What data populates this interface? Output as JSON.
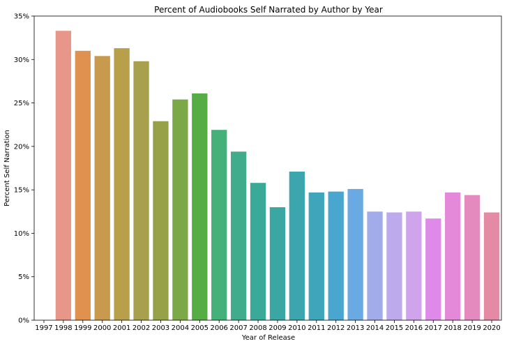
{
  "chart_data": {
    "type": "bar",
    "title": "Percent of Audiobooks Self Narrated by Author by Year",
    "xlabel": "Year of Release",
    "ylabel": "Percent Self Narration",
    "categories": [
      "1997",
      "1998",
      "1999",
      "2000",
      "2001",
      "2002",
      "2003",
      "2004",
      "2005",
      "2006",
      "2007",
      "2008",
      "2009",
      "2010",
      "2011",
      "2012",
      "2013",
      "2014",
      "2015",
      "2016",
      "2017",
      "2018",
      "2019",
      "2020"
    ],
    "values": [
      0,
      33.3,
      31.0,
      30.4,
      31.3,
      29.8,
      22.9,
      25.4,
      26.1,
      21.9,
      19.4,
      15.8,
      13.0,
      17.1,
      14.7,
      14.8,
      15.1,
      12.5,
      12.4,
      12.5,
      11.7,
      14.7,
      14.4,
      12.4
    ],
    "ylim": [
      0,
      35
    ],
    "yticks": [
      0,
      5,
      10,
      15,
      20,
      25,
      30,
      35
    ],
    "ytick_suffix": "%",
    "grid": false,
    "colors": [
      "#e9968a",
      "#e9968a",
      "#e0914f",
      "#c89a4e",
      "#b8a04a",
      "#a8a04c",
      "#97a248",
      "#7ca948",
      "#56ad44",
      "#45b07a",
      "#40ac8c",
      "#3ba998",
      "#3aa7a3",
      "#3ca6ae",
      "#3ea5bb",
      "#48a6cf",
      "#6aaae3",
      "#a2acea",
      "#bcaaec",
      "#cfa4ec",
      "#df8ae8",
      "#e489d9",
      "#e58abe",
      "#e58aa5"
    ]
  }
}
